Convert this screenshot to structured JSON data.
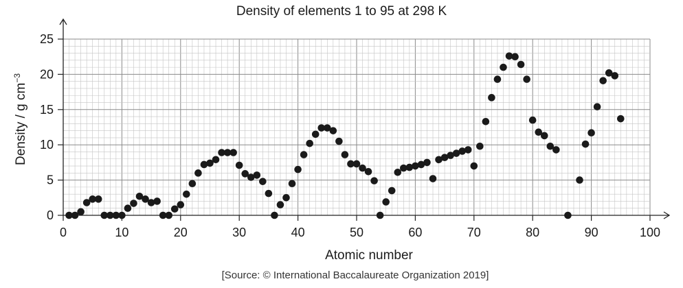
{
  "chart_data": {
    "type": "scatter",
    "title": "Density of elements 1 to 95 at 298 K",
    "xlabel": "Atomic number",
    "ylabel_text": "Density / g cm",
    "ylabel_sup": "−3",
    "xlim": [
      0,
      100
    ],
    "ylim": [
      0,
      25
    ],
    "xticks": [
      0,
      10,
      20,
      30,
      40,
      50,
      60,
      70,
      80,
      90,
      100
    ],
    "yticks": [
      0,
      5,
      10,
      15,
      20,
      25
    ],
    "grid": true,
    "marker_color": "#1a1a1a",
    "points": [
      [
        1,
        0.0
      ],
      [
        2,
        0.0
      ],
      [
        3,
        0.5
      ],
      [
        4,
        1.8
      ],
      [
        5,
        2.3
      ],
      [
        6,
        2.3
      ],
      [
        7,
        0.0
      ],
      [
        8,
        0.0
      ],
      [
        9,
        0.0
      ],
      [
        10,
        0.0
      ],
      [
        11,
        1.0
      ],
      [
        12,
        1.7
      ],
      [
        13,
        2.7
      ],
      [
        14,
        2.3
      ],
      [
        15,
        1.8
      ],
      [
        16,
        2.0
      ],
      [
        17,
        0.0
      ],
      [
        18,
        0.0
      ],
      [
        19,
        0.9
      ],
      [
        20,
        1.5
      ],
      [
        21,
        3.0
      ],
      [
        22,
        4.5
      ],
      [
        23,
        6.0
      ],
      [
        24,
        7.2
      ],
      [
        25,
        7.4
      ],
      [
        26,
        7.9
      ],
      [
        27,
        8.9
      ],
      [
        28,
        8.9
      ],
      [
        29,
        8.9
      ],
      [
        30,
        7.1
      ],
      [
        31,
        5.9
      ],
      [
        32,
        5.4
      ],
      [
        33,
        5.7
      ],
      [
        34,
        4.8
      ],
      [
        35,
        3.1
      ],
      [
        36,
        0.0
      ],
      [
        37,
        1.5
      ],
      [
        38,
        2.5
      ],
      [
        39,
        4.5
      ],
      [
        40,
        6.5
      ],
      [
        41,
        8.6
      ],
      [
        42,
        10.2
      ],
      [
        43,
        11.5
      ],
      [
        44,
        12.4
      ],
      [
        45,
        12.4
      ],
      [
        46,
        12.0
      ],
      [
        47,
        10.5
      ],
      [
        48,
        8.6
      ],
      [
        49,
        7.3
      ],
      [
        50,
        7.3
      ],
      [
        51,
        6.7
      ],
      [
        52,
        6.2
      ],
      [
        53,
        4.9
      ],
      [
        54,
        0.0
      ],
      [
        55,
        1.9
      ],
      [
        56,
        3.5
      ],
      [
        57,
        6.1
      ],
      [
        58,
        6.7
      ],
      [
        59,
        6.8
      ],
      [
        60,
        7.0
      ],
      [
        61,
        7.2
      ],
      [
        62,
        7.5
      ],
      [
        63,
        5.2
      ],
      [
        64,
        7.9
      ],
      [
        65,
        8.2
      ],
      [
        66,
        8.5
      ],
      [
        67,
        8.8
      ],
      [
        68,
        9.1
      ],
      [
        69,
        9.3
      ],
      [
        70,
        7.0
      ],
      [
        71,
        9.8
      ],
      [
        72,
        13.3
      ],
      [
        73,
        16.7
      ],
      [
        74,
        19.3
      ],
      [
        75,
        21.0
      ],
      [
        76,
        22.6
      ],
      [
        77,
        22.5
      ],
      [
        78,
        21.4
      ],
      [
        79,
        19.3
      ],
      [
        80,
        13.5
      ],
      [
        81,
        11.8
      ],
      [
        82,
        11.3
      ],
      [
        83,
        9.8
      ],
      [
        84,
        9.3
      ],
      [
        86,
        0.0
      ],
      [
        88,
        5.0
      ],
      [
        89,
        10.1
      ],
      [
        90,
        11.7
      ],
      [
        91,
        15.4
      ],
      [
        92,
        19.1
      ],
      [
        93,
        20.2
      ],
      [
        94,
        19.8
      ],
      [
        95,
        13.7
      ]
    ]
  },
  "source_text": "[Source: © International Baccalaureate Organization 2019]"
}
